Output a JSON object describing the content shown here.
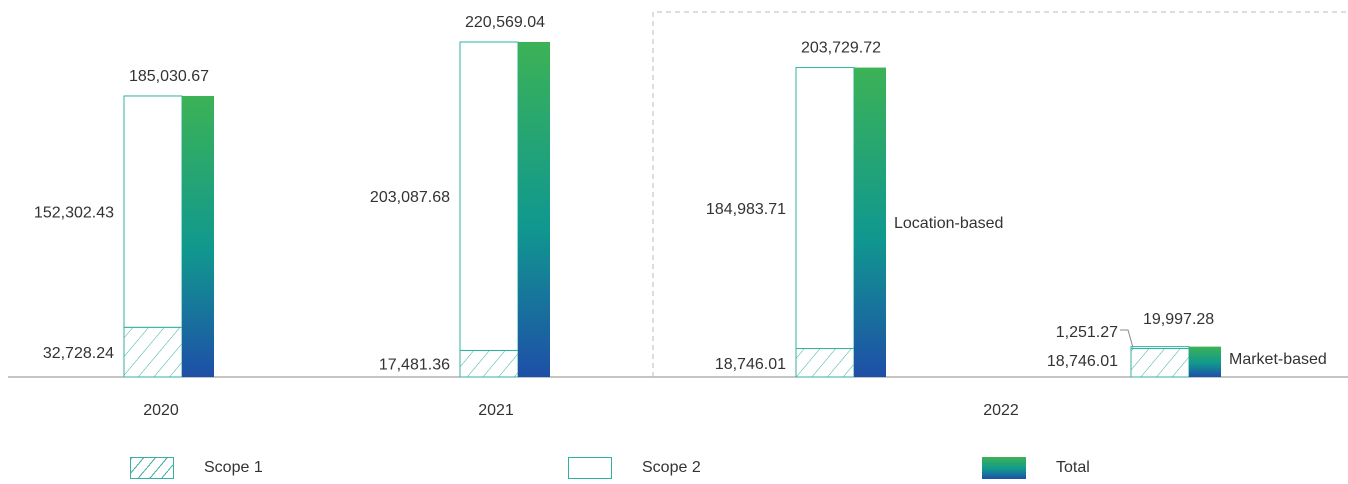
{
  "chart_data": {
    "type": "bar",
    "ylim": [
      0,
      230000
    ],
    "colors": {
      "scope1_stroke": "#3aaea0",
      "scope2_stroke": "#2bb3a0",
      "total_top": "#3cb256",
      "total_mid": "#10988f",
      "total_bottom": "#1e4fa8",
      "axis": "#888888",
      "divider": "#bbbbbb"
    },
    "groups": [
      {
        "year": "2020",
        "scope1": 32728.24,
        "scope2": 152302.43,
        "total": 185030.67,
        "labels": {
          "scope1": "32,728.24",
          "scope2": "152,302.43",
          "total": "185,030.67"
        }
      },
      {
        "year": "2021",
        "scope1": 17481.36,
        "scope2": 203087.68,
        "total": 220569.04,
        "labels": {
          "scope1": "17,481.36",
          "scope2": "203,087.68",
          "total": "220,569.04"
        }
      },
      {
        "year": "2022",
        "subtype": "Location-based",
        "scope1": 18746.01,
        "scope2": 184983.71,
        "total": 203729.72,
        "labels": {
          "scope1": "18,746.01",
          "scope2": "184,983.71",
          "total": "203,729.72"
        }
      },
      {
        "year": "2022",
        "subtype": "Market-based",
        "scope1": 18746.01,
        "scope2": 1251.27,
        "total": 19997.28,
        "labels": {
          "scope1": "18,746.01",
          "scope2": "1,251.27",
          "total": "19,997.28"
        }
      }
    ],
    "x_labels": [
      "2020",
      "2021",
      "2022"
    ],
    "legend": [
      {
        "key": "scope1",
        "label": "Scope 1"
      },
      {
        "key": "scope2",
        "label": "Scope 2"
      },
      {
        "key": "total",
        "label": "Total"
      }
    ]
  }
}
